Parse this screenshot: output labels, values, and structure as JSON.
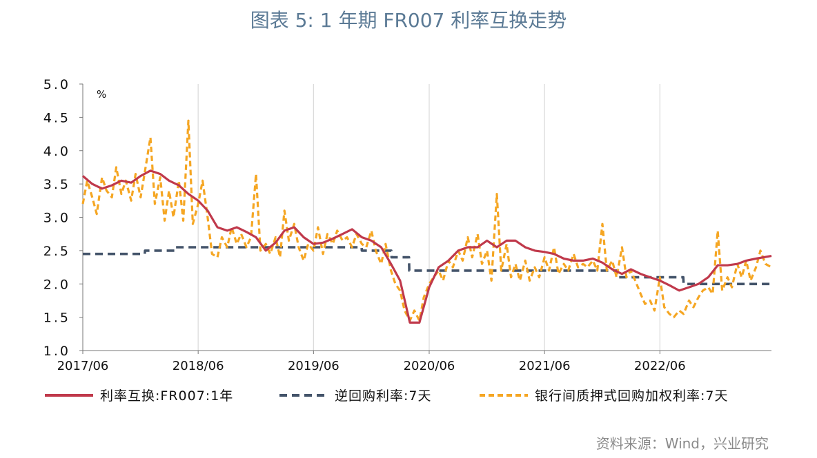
{
  "title": "图表 5:  1 年期 FR007 利率互换走势",
  "source": "资料来源：Wind，兴业研究",
  "chart_data": {
    "type": "line",
    "unit_label": "%",
    "ylim": [
      1.0,
      5.0
    ],
    "yticks": [
      "5.0",
      "4.5",
      "4.0",
      "3.5",
      "3.0",
      "2.5",
      "2.0",
      "1.5",
      "1.0"
    ],
    "xlim": [
      "2017-06-01",
      "2023-05-20"
    ],
    "xticks": [
      {
        "date": "2017-06-01",
        "label": "2017/06"
      },
      {
        "date": "2018-06-01",
        "label": "2018/06"
      },
      {
        "date": "2019-06-01",
        "label": "2019/06"
      },
      {
        "date": "2020-06-01",
        "label": "2020/06"
      },
      {
        "date": "2021-06-01",
        "label": "2021/06"
      },
      {
        "date": "2022-06-01",
        "label": "2022/06"
      }
    ],
    "grid": "vertical",
    "legend_position": "bottom",
    "series": [
      {
        "name": "利率互换:FR007:1年",
        "color": "#c0394b",
        "style": "solid",
        "points": [
          [
            "2017-06-01",
            3.62
          ],
          [
            "2017-07-01",
            3.5
          ],
          [
            "2017-08-01",
            3.43
          ],
          [
            "2017-09-01",
            3.48
          ],
          [
            "2017-10-01",
            3.55
          ],
          [
            "2017-11-01",
            3.52
          ],
          [
            "2017-12-01",
            3.62
          ],
          [
            "2018-01-01",
            3.7
          ],
          [
            "2018-02-01",
            3.65
          ],
          [
            "2018-03-01",
            3.55
          ],
          [
            "2018-04-01",
            3.48
          ],
          [
            "2018-05-01",
            3.35
          ],
          [
            "2018-06-01",
            3.25
          ],
          [
            "2018-07-01",
            3.1
          ],
          [
            "2018-08-01",
            2.85
          ],
          [
            "2018-09-01",
            2.8
          ],
          [
            "2018-10-01",
            2.85
          ],
          [
            "2018-11-01",
            2.78
          ],
          [
            "2018-12-01",
            2.7
          ],
          [
            "2019-01-01",
            2.5
          ],
          [
            "2019-02-01",
            2.62
          ],
          [
            "2019-03-01",
            2.8
          ],
          [
            "2019-04-01",
            2.85
          ],
          [
            "2019-05-01",
            2.7
          ],
          [
            "2019-06-01",
            2.6
          ],
          [
            "2019-07-01",
            2.62
          ],
          [
            "2019-08-01",
            2.68
          ],
          [
            "2019-09-01",
            2.75
          ],
          [
            "2019-10-01",
            2.82
          ],
          [
            "2019-11-01",
            2.7
          ],
          [
            "2019-12-01",
            2.65
          ],
          [
            "2020-01-01",
            2.55
          ],
          [
            "2020-02-01",
            2.3
          ],
          [
            "2020-03-01",
            2.05
          ],
          [
            "2020-04-01",
            1.42
          ],
          [
            "2020-05-01",
            1.42
          ],
          [
            "2020-06-01",
            1.95
          ],
          [
            "2020-07-01",
            2.25
          ],
          [
            "2020-08-01",
            2.35
          ],
          [
            "2020-09-01",
            2.5
          ],
          [
            "2020-10-01",
            2.55
          ],
          [
            "2020-11-01",
            2.55
          ],
          [
            "2020-12-01",
            2.65
          ],
          [
            "2021-01-01",
            2.55
          ],
          [
            "2021-02-01",
            2.65
          ],
          [
            "2021-03-01",
            2.65
          ],
          [
            "2021-04-01",
            2.55
          ],
          [
            "2021-05-01",
            2.5
          ],
          [
            "2021-06-01",
            2.48
          ],
          [
            "2021-07-01",
            2.45
          ],
          [
            "2021-08-01",
            2.38
          ],
          [
            "2021-09-01",
            2.35
          ],
          [
            "2021-10-01",
            2.35
          ],
          [
            "2021-11-01",
            2.38
          ],
          [
            "2021-12-01",
            2.32
          ],
          [
            "2022-01-01",
            2.22
          ],
          [
            "2022-02-01",
            2.15
          ],
          [
            "2022-03-01",
            2.22
          ],
          [
            "2022-04-01",
            2.15
          ],
          [
            "2022-05-01",
            2.1
          ],
          [
            "2022-06-01",
            2.05
          ],
          [
            "2022-07-01",
            1.98
          ],
          [
            "2022-08-01",
            1.9
          ],
          [
            "2022-09-01",
            1.95
          ],
          [
            "2022-10-01",
            2.0
          ],
          [
            "2022-11-01",
            2.1
          ],
          [
            "2022-12-01",
            2.28
          ],
          [
            "2023-01-01",
            2.28
          ],
          [
            "2023-02-01",
            2.3
          ],
          [
            "2023-03-01",
            2.35
          ],
          [
            "2023-04-01",
            2.38
          ],
          [
            "2023-05-20",
            2.42
          ]
        ]
      },
      {
        "name": "逆回购利率:7天",
        "color": "#44546a",
        "style": "dashed",
        "points": [
          [
            "2017-06-01",
            2.45
          ],
          [
            "2017-12-14",
            2.45
          ],
          [
            "2017-12-15",
            2.5
          ],
          [
            "2018-03-21",
            2.5
          ],
          [
            "2018-03-22",
            2.55
          ],
          [
            "2019-10-31",
            2.55
          ],
          [
            "2019-11-01",
            2.5
          ],
          [
            "2020-02-02",
            2.5
          ],
          [
            "2020-02-03",
            2.4
          ],
          [
            "2020-03-29",
            2.4
          ],
          [
            "2020-03-30",
            2.2
          ],
          [
            "2022-01-16",
            2.2
          ],
          [
            "2022-01-17",
            2.1
          ],
          [
            "2022-08-14",
            2.1
          ],
          [
            "2022-08-15",
            2.0
          ],
          [
            "2023-05-20",
            2.0
          ]
        ]
      },
      {
        "name": "银行间质押式回购加权利率:7天",
        "color": "#f5a623",
        "style": "dashed",
        "points": [
          [
            "2017-06-01",
            3.2
          ],
          [
            "2017-06-15",
            3.55
          ],
          [
            "2017-07-01",
            3.3
          ],
          [
            "2017-07-15",
            3.05
          ],
          [
            "2017-08-01",
            3.6
          ],
          [
            "2017-08-15",
            3.4
          ],
          [
            "2017-09-01",
            3.3
          ],
          [
            "2017-09-15",
            3.75
          ],
          [
            "2017-10-01",
            3.35
          ],
          [
            "2017-10-15",
            3.55
          ],
          [
            "2017-11-01",
            3.25
          ],
          [
            "2017-11-15",
            3.65
          ],
          [
            "2017-12-01",
            3.3
          ],
          [
            "2017-12-15",
            3.7
          ],
          [
            "2018-01-01",
            4.2
          ],
          [
            "2018-01-15",
            3.2
          ],
          [
            "2018-02-01",
            3.6
          ],
          [
            "2018-02-15",
            2.95
          ],
          [
            "2018-03-01",
            3.4
          ],
          [
            "2018-03-15",
            3.0
          ],
          [
            "2018-04-01",
            3.55
          ],
          [
            "2018-04-15",
            2.95
          ],
          [
            "2018-05-01",
            4.45
          ],
          [
            "2018-05-15",
            2.9
          ],
          [
            "2018-06-01",
            3.2
          ],
          [
            "2018-06-15",
            3.55
          ],
          [
            "2018-07-01",
            3.0
          ],
          [
            "2018-07-15",
            2.45
          ],
          [
            "2018-08-01",
            2.4
          ],
          [
            "2018-08-15",
            2.7
          ],
          [
            "2018-09-01",
            2.55
          ],
          [
            "2018-09-15",
            2.85
          ],
          [
            "2018-10-01",
            2.6
          ],
          [
            "2018-10-15",
            2.75
          ],
          [
            "2018-11-01",
            2.55
          ],
          [
            "2018-11-15",
            2.7
          ],
          [
            "2018-12-01",
            3.65
          ],
          [
            "2018-12-15",
            2.5
          ],
          [
            "2019-01-01",
            2.6
          ],
          [
            "2019-01-15",
            2.45
          ],
          [
            "2019-02-01",
            2.7
          ],
          [
            "2019-02-15",
            2.4
          ],
          [
            "2019-03-01",
            3.1
          ],
          [
            "2019-03-15",
            2.65
          ],
          [
            "2019-04-01",
            2.9
          ],
          [
            "2019-04-15",
            2.55
          ],
          [
            "2019-05-01",
            2.35
          ],
          [
            "2019-05-15",
            2.6
          ],
          [
            "2019-06-01",
            2.5
          ],
          [
            "2019-06-15",
            2.85
          ],
          [
            "2019-07-01",
            2.45
          ],
          [
            "2019-07-15",
            2.75
          ],
          [
            "2019-08-01",
            2.6
          ],
          [
            "2019-08-15",
            2.8
          ],
          [
            "2019-09-01",
            2.65
          ],
          [
            "2019-09-15",
            2.7
          ],
          [
            "2019-10-01",
            2.55
          ],
          [
            "2019-10-15",
            2.75
          ],
          [
            "2019-11-01",
            2.6
          ],
          [
            "2019-11-15",
            2.55
          ],
          [
            "2019-12-01",
            2.8
          ],
          [
            "2019-12-15",
            2.5
          ],
          [
            "2020-01-01",
            2.3
          ],
          [
            "2020-01-15",
            2.6
          ],
          [
            "2020-02-01",
            2.2
          ],
          [
            "2020-02-15",
            2.0
          ],
          [
            "2020-03-01",
            1.9
          ],
          [
            "2020-03-15",
            1.6
          ],
          [
            "2020-04-01",
            1.45
          ],
          [
            "2020-04-15",
            1.6
          ],
          [
            "2020-05-01",
            1.45
          ],
          [
            "2020-05-15",
            1.8
          ],
          [
            "2020-06-01",
            2.0
          ],
          [
            "2020-06-15",
            2.1
          ],
          [
            "2020-07-01",
            2.2
          ],
          [
            "2020-07-15",
            2.05
          ],
          [
            "2020-08-01",
            2.35
          ],
          [
            "2020-08-15",
            2.25
          ],
          [
            "2020-09-01",
            2.5
          ],
          [
            "2020-09-15",
            2.35
          ],
          [
            "2020-10-01",
            2.7
          ],
          [
            "2020-10-15",
            2.4
          ],
          [
            "2020-11-01",
            2.75
          ],
          [
            "2020-11-15",
            2.3
          ],
          [
            "2020-12-01",
            2.5
          ],
          [
            "2020-12-15",
            2.05
          ],
          [
            "2021-01-01",
            3.35
          ],
          [
            "2021-01-15",
            2.2
          ],
          [
            "2021-02-01",
            2.6
          ],
          [
            "2021-02-15",
            2.1
          ],
          [
            "2021-03-01",
            2.3
          ],
          [
            "2021-03-15",
            2.05
          ],
          [
            "2021-04-01",
            2.35
          ],
          [
            "2021-04-15",
            2.05
          ],
          [
            "2021-05-01",
            2.25
          ],
          [
            "2021-05-15",
            2.1
          ],
          [
            "2021-06-01",
            2.4
          ],
          [
            "2021-06-15",
            2.2
          ],
          [
            "2021-07-01",
            2.55
          ],
          [
            "2021-07-15",
            2.15
          ],
          [
            "2021-08-01",
            2.3
          ],
          [
            "2021-08-15",
            2.2
          ],
          [
            "2021-09-01",
            2.45
          ],
          [
            "2021-09-15",
            2.25
          ],
          [
            "2021-10-01",
            2.3
          ],
          [
            "2021-10-15",
            2.25
          ],
          [
            "2021-11-01",
            2.35
          ],
          [
            "2021-11-15",
            2.2
          ],
          [
            "2021-12-01",
            2.9
          ],
          [
            "2021-12-15",
            2.2
          ],
          [
            "2022-01-01",
            2.35
          ],
          [
            "2022-01-15",
            2.1
          ],
          [
            "2022-02-01",
            2.55
          ],
          [
            "2022-02-15",
            2.1
          ],
          [
            "2022-03-01",
            2.2
          ],
          [
            "2022-03-15",
            2.05
          ],
          [
            "2022-04-01",
            1.85
          ],
          [
            "2022-04-15",
            1.7
          ],
          [
            "2022-05-01",
            1.75
          ],
          [
            "2022-05-15",
            1.6
          ],
          [
            "2022-06-01",
            2.1
          ],
          [
            "2022-06-15",
            1.65
          ],
          [
            "2022-07-01",
            1.55
          ],
          [
            "2022-07-15",
            1.5
          ],
          [
            "2022-08-01",
            1.6
          ],
          [
            "2022-08-15",
            1.55
          ],
          [
            "2022-09-01",
            1.75
          ],
          [
            "2022-09-15",
            1.65
          ],
          [
            "2022-10-01",
            1.8
          ],
          [
            "2022-10-15",
            1.9
          ],
          [
            "2022-11-01",
            1.95
          ],
          [
            "2022-11-15",
            1.85
          ],
          [
            "2022-12-01",
            2.8
          ],
          [
            "2022-12-15",
            1.9
          ],
          [
            "2023-01-01",
            2.1
          ],
          [
            "2023-01-15",
            1.95
          ],
          [
            "2023-02-01",
            2.3
          ],
          [
            "2023-02-15",
            2.1
          ],
          [
            "2023-03-01",
            2.35
          ],
          [
            "2023-03-15",
            2.05
          ],
          [
            "2023-04-01",
            2.25
          ],
          [
            "2023-04-15",
            2.5
          ],
          [
            "2023-05-01",
            2.3
          ],
          [
            "2023-05-20",
            2.25
          ]
        ]
      }
    ]
  }
}
